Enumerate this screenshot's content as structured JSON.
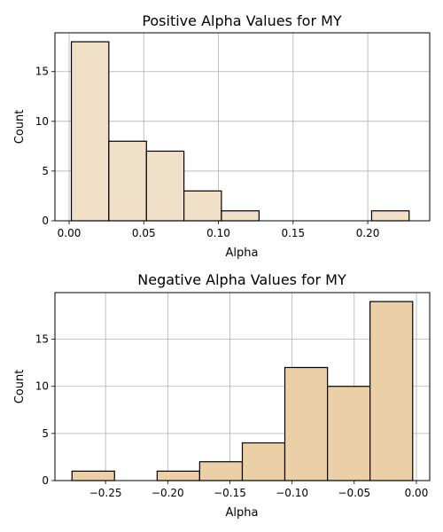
{
  "chart_data": [
    {
      "type": "bar",
      "title": "Positive Alpha Values for MY",
      "xlabel": "Alpha",
      "ylabel": "Count",
      "bar_color": "#f0e0c8",
      "edge_color": "#000000",
      "grid": true,
      "xlim": [
        -0.0095,
        0.2415
      ],
      "ylim": [
        0,
        18.9
      ],
      "xticks": [
        0.0,
        0.05,
        0.1,
        0.15,
        0.2
      ],
      "xtick_labels": [
        "0.00",
        "0.05",
        "0.10",
        "0.15",
        "0.20"
      ],
      "yticks": [
        0,
        5,
        10,
        15
      ],
      "bins": [
        {
          "x0": 0.0015,
          "x1": 0.0266,
          "count": 18
        },
        {
          "x0": 0.0266,
          "x1": 0.0518,
          "count": 8
        },
        {
          "x0": 0.0518,
          "x1": 0.0769,
          "count": 7
        },
        {
          "x0": 0.0769,
          "x1": 0.102,
          "count": 3
        },
        {
          "x0": 0.102,
          "x1": 0.1272,
          "count": 1
        },
        {
          "x0": 0.1272,
          "x1": 0.1523,
          "count": 0
        },
        {
          "x0": 0.1523,
          "x1": 0.1774,
          "count": 0
        },
        {
          "x0": 0.1774,
          "x1": 0.2026,
          "count": 0
        },
        {
          "x0": 0.2026,
          "x1": 0.2277,
          "count": 1
        }
      ]
    },
    {
      "type": "bar",
      "title": "Negative Alpha Values for MY",
      "xlabel": "Alpha",
      "ylabel": "Count",
      "bar_color": "#ebcfa6",
      "edge_color": "#000000",
      "grid": true,
      "xlim": [
        -0.2907,
        0.0107
      ],
      "ylim": [
        0,
        19.95
      ],
      "xticks": [
        -0.25,
        -0.2,
        -0.15,
        -0.1,
        -0.05,
        0.0
      ],
      "xtick_labels": [
        "−0.25",
        "−0.20",
        "−0.15",
        "−0.10",
        "−0.05",
        "0.00"
      ],
      "yticks": [
        0,
        5,
        10,
        15
      ],
      "bins": [
        {
          "x0": -0.277,
          "x1": -0.2428,
          "count": 1
        },
        {
          "x0": -0.2428,
          "x1": -0.2085,
          "count": 0
        },
        {
          "x0": -0.2085,
          "x1": -0.1743,
          "count": 1
        },
        {
          "x0": -0.1743,
          "x1": -0.14,
          "count": 2
        },
        {
          "x0": -0.14,
          "x1": -0.1058,
          "count": 4
        },
        {
          "x0": -0.1058,
          "x1": -0.0715,
          "count": 12
        },
        {
          "x0": -0.0715,
          "x1": -0.0373,
          "count": 10
        },
        {
          "x0": -0.0373,
          "x1": -0.003,
          "count": 19
        }
      ]
    }
  ]
}
